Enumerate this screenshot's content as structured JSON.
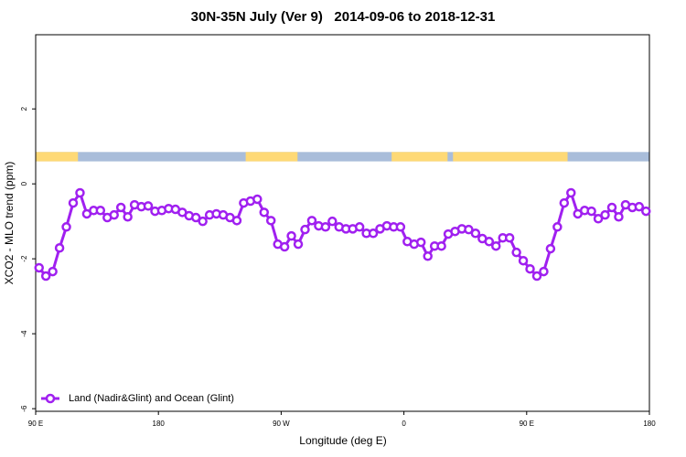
{
  "chart_data": {
    "type": "line",
    "title": "30N-35N July (Ver 9)   2014-09-06 to 2018-12-31",
    "xlabel": "Longitude (deg E)",
    "ylabel": "XCO2 - MLO trend (ppm)",
    "xlim": [
      90,
      540
    ],
    "ylim": [
      -6.07,
      3.98
    ],
    "xticks": [
      {
        "value": 90,
        "label": "90 E"
      },
      180,
      {
        "value": 270,
        "label": "90 W"
      },
      {
        "value": 360,
        "label": "0"
      },
      {
        "value": 450,
        "label": "90 E"
      },
      {
        "value": 540,
        "label": "180"
      }
    ],
    "yticks": [
      -6,
      -4,
      -2,
      0,
      2
    ],
    "legend": "bottomleft",
    "surface": {
      "band": [
        0.6,
        0.85
      ],
      "ocean_color": "#a9bdda",
      "land_color": "#fed976",
      "land": [
        [
          90,
          121
        ],
        [
          244,
          282
        ],
        [
          351,
          392
        ],
        [
          396,
          480
        ]
      ]
    },
    "x": [
      92.5,
      97.5,
      102.5,
      107.5,
      112.5,
      117.5,
      122.5,
      127.5,
      132.5,
      137.5,
      142.5,
      147.5,
      152.5,
      157.5,
      162.5,
      167.5,
      172.5,
      177.5,
      182.5,
      187.5,
      192.5,
      197.5,
      202.5,
      207.5,
      212.5,
      217.5,
      222.5,
      227.5,
      232.5,
      237.5,
      242.5,
      247.5,
      252.5,
      257.5,
      262.5,
      267.5,
      272.5,
      277.5,
      282.5,
      287.5,
      292.5,
      297.5,
      302.5,
      307.5,
      312.5,
      317.5,
      322.5,
      327.5,
      332.5,
      337.5,
      342.5,
      347.5,
      352.5,
      357.5,
      362.5,
      367.5,
      372.5,
      377.5,
      382.5,
      387.5,
      392.5,
      397.5,
      402.5,
      407.5,
      412.5,
      417.5,
      422.5,
      427.5,
      432.5,
      437.5,
      442.5,
      447.5,
      452.5,
      457.5,
      462.5,
      467.5,
      472.5,
      477.5,
      482.5,
      487.5,
      492.5,
      497.5,
      502.5,
      507.5,
      512.5,
      517.5,
      522.5,
      527.5,
      532.5,
      537.5
    ],
    "series": [
      {
        "name": "Land (Nadir&Glint) and Ocean (Glint)",
        "color": "#a020f0",
        "values": [
          -2.24,
          -2.46,
          -2.34,
          -1.71,
          -1.15,
          -0.51,
          -0.24,
          -0.8,
          -0.71,
          -0.71,
          -0.9,
          -0.83,
          -0.63,
          -0.88,
          -0.56,
          -0.61,
          -0.59,
          -0.73,
          -0.71,
          -0.66,
          -0.68,
          -0.76,
          -0.85,
          -0.9,
          -1.0,
          -0.83,
          -0.8,
          -0.83,
          -0.9,
          -0.98,
          -0.51,
          -0.46,
          -0.41,
          -0.76,
          -0.98,
          -1.61,
          -1.68,
          -1.39,
          -1.61,
          -1.22,
          -0.98,
          -1.12,
          -1.15,
          -1.0,
          -1.15,
          -1.2,
          -1.2,
          -1.15,
          -1.32,
          -1.32,
          -1.2,
          -1.12,
          -1.15,
          -1.15,
          -1.54,
          -1.61,
          -1.56,
          -1.93,
          -1.66,
          -1.66,
          -1.34,
          -1.27,
          -1.2,
          -1.22,
          -1.32,
          -1.46,
          -1.54,
          -1.66,
          -1.44,
          -1.44,
          -1.83,
          -2.05,
          -2.27,
          -2.46,
          -2.34,
          -1.73,
          -1.15,
          -0.51,
          -0.24,
          -0.8,
          -0.71,
          -0.73,
          -0.93,
          -0.83,
          -0.63,
          -0.88,
          -0.56,
          -0.63,
          -0.61,
          -0.73
        ]
      }
    ]
  }
}
